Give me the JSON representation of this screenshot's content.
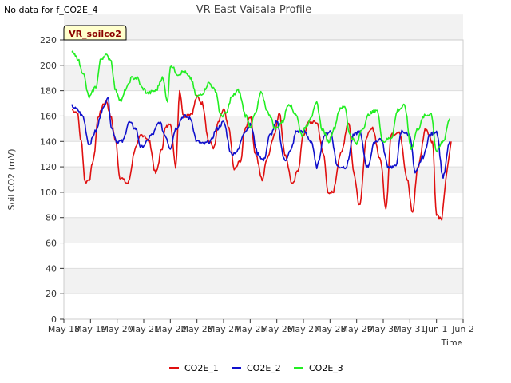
{
  "header": {
    "no_data_note": "No data for f_CO2E_4"
  },
  "chart_data": {
    "type": "line",
    "title": "VR East Vaisala Profile",
    "xlabel": "Time",
    "ylabel": "Soil CO2 (mV)",
    "site_label": "VR_soilco2",
    "ylim": [
      0,
      220
    ],
    "yticks": [
      0,
      20,
      40,
      60,
      80,
      100,
      120,
      140,
      160,
      180,
      200,
      220
    ],
    "xlim": [
      0,
      15
    ],
    "xticks": [
      {
        "pos": 0,
        "label": "May 18"
      },
      {
        "pos": 1,
        "label": "May 19"
      },
      {
        "pos": 2,
        "label": "May 20"
      },
      {
        "pos": 3,
        "label": "May 21"
      },
      {
        "pos": 4,
        "label": "May 22"
      },
      {
        "pos": 5,
        "label": "May 23"
      },
      {
        "pos": 6,
        "label": "May 24"
      },
      {
        "pos": 7,
        "label": "May 25"
      },
      {
        "pos": 8,
        "label": "May 26"
      },
      {
        "pos": 9,
        "label": "May 27"
      },
      {
        "pos": 10,
        "label": "May 28"
      },
      {
        "pos": 11,
        "label": "May 29"
      },
      {
        "pos": 12,
        "label": "May 30"
      },
      {
        "pos": 13,
        "label": "May 31"
      },
      {
        "pos": 14,
        "label": "Jun 1"
      },
      {
        "pos": 15,
        "label": "Jun 2"
      }
    ],
    "grid": true,
    "legend": "bottom",
    "series": [
      {
        "name": "CO2E_1",
        "color": "#e01010",
        "x": [
          0.3,
          0.5,
          0.65,
          0.8,
          0.95,
          1.1,
          1.3,
          1.5,
          1.6,
          1.75,
          1.95,
          2.1,
          2.4,
          2.7,
          2.9,
          3.0,
          3.2,
          3.45,
          3.7,
          3.8,
          3.9,
          4.0,
          4.2,
          4.35,
          4.5,
          4.8,
          5.0,
          5.2,
          5.45,
          5.65,
          5.8,
          6.0,
          6.2,
          6.4,
          6.65,
          6.8,
          7.0,
          7.2,
          7.45,
          7.65,
          7.9,
          8.1,
          8.3,
          8.6,
          8.8,
          9.0,
          9.2,
          9.5,
          9.75,
          9.95,
          10.1,
          10.4,
          10.7,
          10.9,
          11.1,
          11.4,
          11.6,
          11.9,
          12.1,
          12.3,
          12.6,
          12.9,
          13.1,
          13.3,
          13.6,
          13.85,
          14.0,
          14.2
        ],
        "y": [
          165,
          163,
          140,
          108,
          110,
          125,
          160,
          170,
          172,
          160,
          140,
          112,
          107,
          135,
          145,
          145,
          140,
          115,
          135,
          150,
          152,
          155,
          120,
          180,
          160,
          162,
          175,
          170,
          140,
          135,
          155,
          165,
          150,
          118,
          125,
          150,
          160,
          130,
          110,
          128,
          145,
          163,
          130,
          106,
          118,
          145,
          155,
          155,
          130,
          98,
          100,
          130,
          155,
          115,
          90,
          145,
          150,
          125,
          88,
          145,
          148,
          110,
          84,
          120,
          150,
          140,
          82,
          78
        ],
        "tail_x": [
          14.35,
          14.55
        ],
        "tail_y": [
          110,
          140
        ]
      },
      {
        "name": "CO2E_2",
        "color": "#1010cc",
        "x": [
          0.3,
          0.5,
          0.7,
          0.95,
          1.2,
          1.45,
          1.65,
          1.8,
          2.0,
          2.2,
          2.45,
          2.7,
          2.9,
          3.0,
          3.3,
          3.6,
          3.8,
          4.0,
          4.2,
          4.5,
          4.75,
          5.0,
          5.25,
          5.5,
          5.75,
          6.0,
          6.3,
          6.5,
          6.8,
          7.0,
          7.3,
          7.5,
          7.75,
          8.0,
          8.3,
          8.5,
          8.75,
          9.0,
          9.3,
          9.5,
          9.8,
          10.0,
          10.3,
          10.6,
          10.9,
          11.1,
          11.4,
          11.7,
          11.9,
          12.2,
          12.45,
          12.7,
          13.0,
          13.2,
          13.5,
          13.75,
          14.0,
          14.25,
          14.5
        ],
        "y": [
          168,
          165,
          160,
          138,
          148,
          165,
          175,
          150,
          140,
          140,
          155,
          150,
          135,
          137,
          145,
          155,
          145,
          135,
          150,
          160,
          158,
          140,
          138,
          140,
          150,
          155,
          130,
          132,
          148,
          153,
          130,
          125,
          145,
          155,
          125,
          132,
          148,
          148,
          140,
          120,
          145,
          148,
          120,
          120,
          145,
          148,
          120,
          140,
          142,
          120,
          120,
          148,
          145,
          115,
          128,
          145,
          148,
          112,
          140
        ]
      },
      {
        "name": "CO2E_3",
        "color": "#22ee22",
        "x": [
          0.3,
          0.5,
          0.7,
          0.95,
          1.2,
          1.4,
          1.55,
          1.75,
          1.95,
          2.15,
          2.35,
          2.55,
          2.75,
          2.95,
          3.15,
          3.45,
          3.7,
          3.9,
          4.0,
          4.3,
          4.5,
          4.75,
          5.0,
          5.2,
          5.45,
          5.7,
          5.9,
          6.1,
          6.3,
          6.55,
          6.85,
          7.0,
          7.2,
          7.4,
          7.7,
          7.95,
          8.2,
          8.45,
          8.7,
          8.95,
          9.1,
          9.3,
          9.5,
          9.7,
          9.95,
          10.15,
          10.35,
          10.55,
          10.75,
          11.0,
          11.2,
          11.5,
          11.75,
          12.0,
          12.3,
          12.55,
          12.8,
          13.05,
          13.3,
          13.55,
          13.8,
          14.0,
          14.25,
          14.5
        ],
        "y": [
          210,
          206,
          195,
          175,
          183,
          205,
          208,
          205,
          180,
          172,
          182,
          190,
          190,
          182,
          178,
          180,
          190,
          172,
          200,
          193,
          195,
          190,
          175,
          178,
          186,
          180,
          160,
          162,
          175,
          180,
          160,
          152,
          162,
          178,
          162,
          150,
          155,
          170,
          162,
          145,
          152,
          160,
          170,
          150,
          140,
          150,
          165,
          168,
          145,
          138,
          150,
          162,
          165,
          140,
          143,
          165,
          168,
          135,
          150,
          160,
          162,
          132,
          140,
          158
        ]
      }
    ]
  },
  "legend_items": [
    {
      "name": "CO2E_1",
      "color": "#e01010"
    },
    {
      "name": "CO2E_2",
      "color": "#1010cc"
    },
    {
      "name": "CO2E_3",
      "color": "#22ee22"
    }
  ]
}
